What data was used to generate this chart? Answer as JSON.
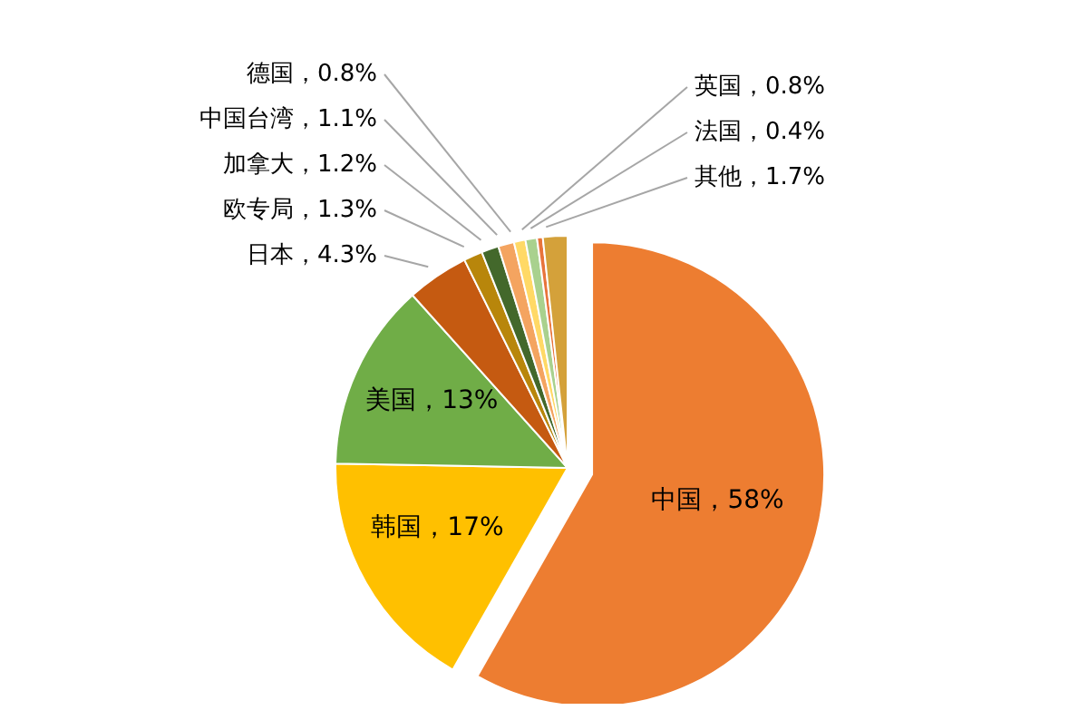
{
  "chart_data": {
    "type": "pie",
    "categories": [
      "中国",
      "韩国",
      "美国",
      "日本",
      "欧专局",
      "加拿大",
      "中国台湾",
      "德国",
      "英国",
      "法国",
      "其他"
    ],
    "values": [
      58,
      17,
      13,
      4.3,
      1.3,
      1.2,
      1.1,
      0.8,
      0.8,
      0.4,
      1.7
    ],
    "value_labels": [
      "58%",
      "17%",
      "13%",
      "4.3%",
      "1.3%",
      "1.2%",
      "1.1%",
      "0.8%",
      "0.8%",
      "0.4%",
      "1.7%"
    ],
    "colors": [
      "#ed7d31",
      "#ffc000",
      "#70ad47",
      "#c55a11",
      "#b8860b",
      "#43682b",
      "#f4a460",
      "#ffd966",
      "#a9d18e",
      "#e8743b",
      "#d4a13a"
    ],
    "legend": false
  }
}
